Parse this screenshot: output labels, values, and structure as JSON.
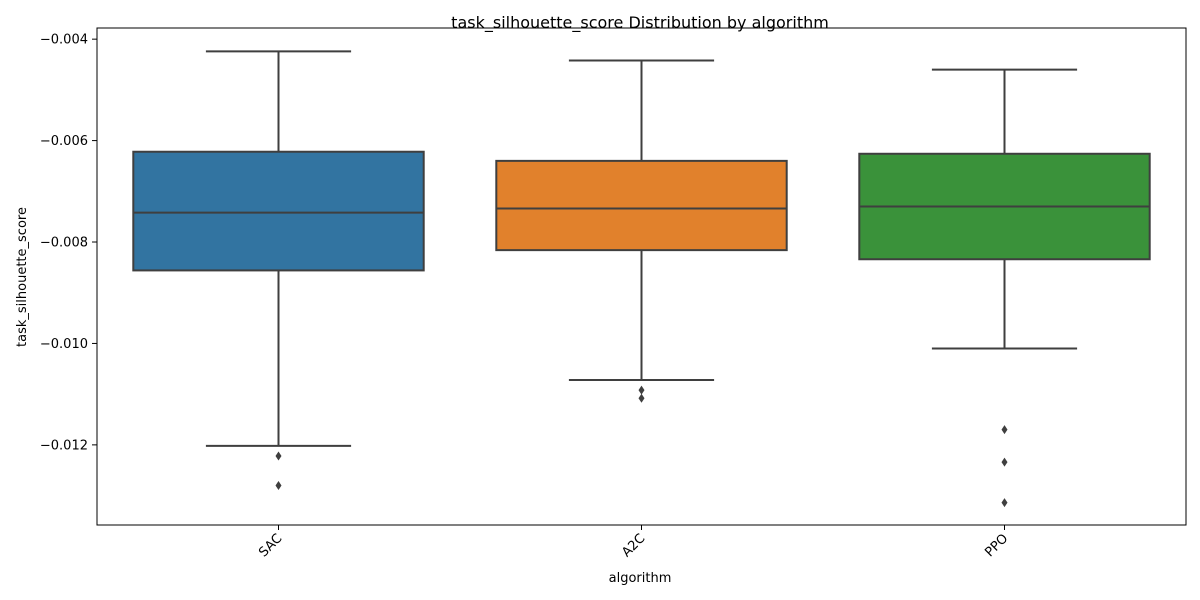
{
  "chart_data": {
    "type": "box",
    "title": "task_silhouette_score Distribution by algorithm",
    "xlabel": "algorithm",
    "ylabel": "task_silhouette_score",
    "ylim": [
      -0.01358,
      -0.00378
    ],
    "yticks": [
      -0.004,
      -0.006,
      -0.008,
      -0.01,
      -0.012
    ],
    "ytick_labels": [
      "−0.004",
      "−0.006",
      "−0.008",
      "−0.010",
      "−0.012"
    ],
    "grid": false,
    "categories": [
      "SAC",
      "A2C",
      "PPO"
    ],
    "boxes": [
      {
        "name": "SAC",
        "color": "#3274a1",
        "whisker_low": -0.01202,
        "q1": -0.00856,
        "median": -0.00742,
        "q3": -0.00622,
        "whisker_high": -0.00424,
        "outliers": [
          -0.01222,
          -0.0128
        ]
      },
      {
        "name": "A2C",
        "color": "#e1812c",
        "whisker_low": -0.01072,
        "q1": -0.00816,
        "median": -0.00734,
        "q3": -0.0064,
        "whisker_high": -0.00442,
        "outliers": [
          -0.01092,
          -0.01108
        ]
      },
      {
        "name": "PPO",
        "color": "#3a923a",
        "whisker_low": -0.0101,
        "q1": -0.00834,
        "median": -0.0073,
        "q3": -0.00626,
        "whisker_high": -0.0046,
        "outliers": [
          -0.0117,
          -0.01234,
          -0.01314
        ]
      }
    ]
  }
}
